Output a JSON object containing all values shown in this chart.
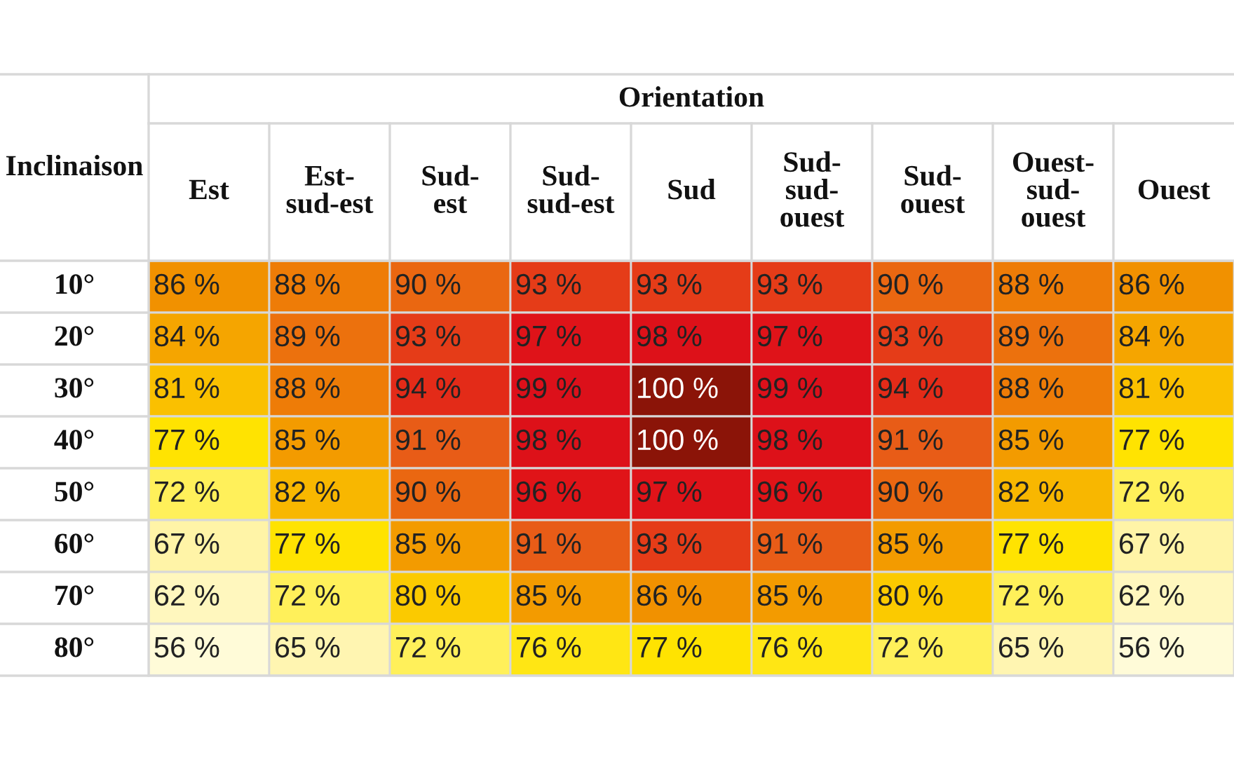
{
  "chart_data": {
    "type": "heatmap",
    "title": "Orientation",
    "ylabel": "Inclinaison",
    "categories": [
      "Est",
      "Est-\nsud-est",
      "Sud-\nest",
      "Sud-\nsud-est",
      "Sud",
      "Sud-\nsud-\nouest",
      "Sud-\nouest",
      "Ouest-\nsud-\nouest",
      "Ouest"
    ],
    "y_categories": [
      "10°",
      "20°",
      "30°",
      "40°",
      "50°",
      "60°",
      "70°",
      "80°"
    ],
    "cells": [
      [
        86,
        88,
        90,
        93,
        93,
        93,
        90,
        88,
        86
      ],
      [
        84,
        89,
        93,
        97,
        98,
        97,
        93,
        89,
        84
      ],
      [
        81,
        88,
        94,
        99,
        100,
        99,
        94,
        88,
        81
      ],
      [
        77,
        85,
        91,
        98,
        100,
        98,
        91,
        85,
        77
      ],
      [
        72,
        82,
        90,
        96,
        97,
        96,
        90,
        82,
        72
      ],
      [
        67,
        77,
        85,
        91,
        93,
        91,
        85,
        77,
        67
      ],
      [
        62,
        72,
        80,
        85,
        86,
        85,
        80,
        72,
        62
      ],
      [
        56,
        65,
        72,
        76,
        77,
        76,
        72,
        65,
        56
      ]
    ],
    "cell_labels": [
      [
        "86 %",
        "88 %",
        "90 %",
        "93 %",
        "93 %",
        "93 %",
        "90 %",
        "88 %",
        "86 %"
      ],
      [
        "84 %",
        "89 %",
        "93 %",
        "97 %",
        "98 %",
        "97 %",
        "93 %",
        "89 %",
        "84 %"
      ],
      [
        "81 %",
        "88 %",
        "94 %",
        "99 %",
        "100 %",
        "99 %",
        "94 %",
        "88 %",
        "81 %"
      ],
      [
        "77 %",
        "85 %",
        "91 %",
        "98 %",
        "100 %",
        "98 %",
        "91 %",
        "85 %",
        "77 %"
      ],
      [
        "72 %",
        "82 %",
        "90 %",
        "96 %",
        "97 %",
        "96 %",
        "90 %",
        "82 %",
        "72 %"
      ],
      [
        "67 %",
        "77 %",
        "85 %",
        "91 %",
        "93 %",
        "91 %",
        "85 %",
        "77 %",
        "67 %"
      ],
      [
        "62 %",
        "72 %",
        "80 %",
        "85 %",
        "86 %",
        "85 %",
        "80 %",
        "72 %",
        "62 %"
      ],
      [
        "56 %",
        "65 %",
        "72 %",
        "76 %",
        "77 %",
        "76 %",
        "72 %",
        "65 %",
        "56 %"
      ]
    ],
    "data_labels": true
  }
}
